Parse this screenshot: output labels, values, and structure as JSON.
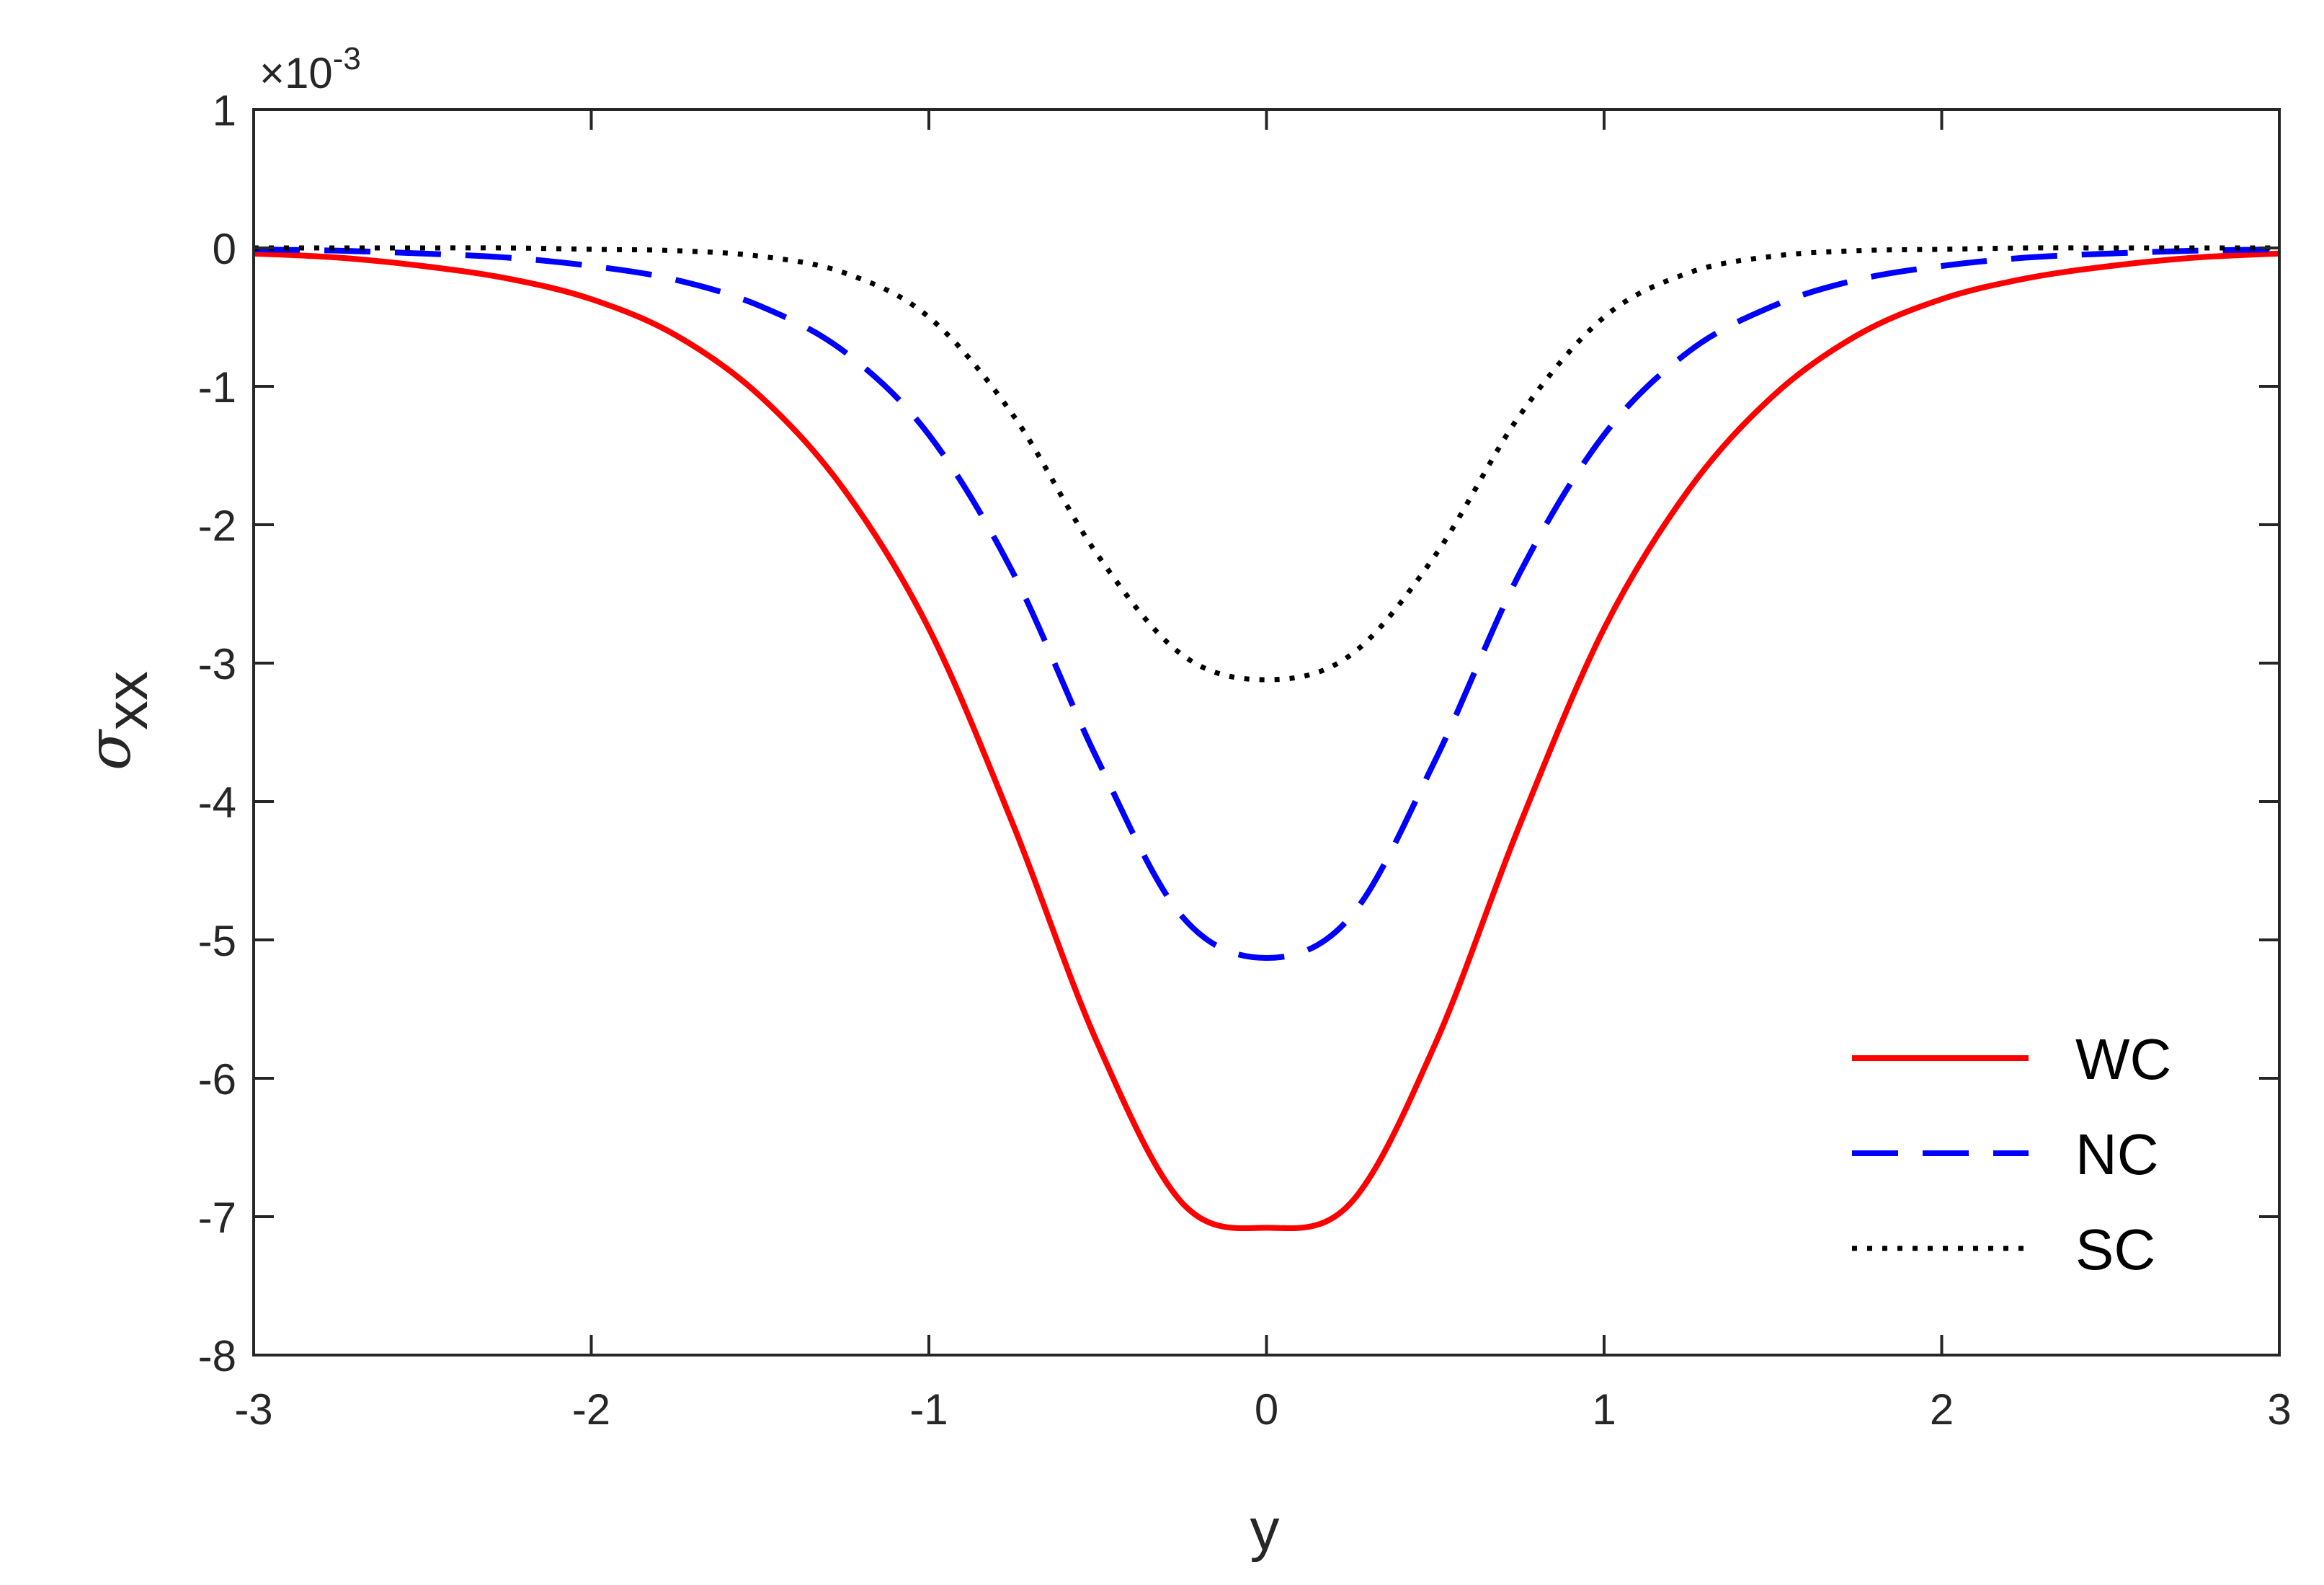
{
  "chart_data": {
    "type": "line",
    "xlabel": "y",
    "ylabel_symbol": "σ",
    "ylabel_subscript": "xx",
    "y_multiplier_base": "×10",
    "y_multiplier_exponent": "-3",
    "xlim": [
      -3,
      3
    ],
    "ylim": [
      -8,
      1
    ],
    "x_ticks": [
      -3,
      -2,
      -1,
      0,
      1,
      2,
      3
    ],
    "y_ticks": [
      1,
      0,
      -1,
      -2,
      -3,
      -4,
      -5,
      -6,
      -7,
      -8
    ],
    "x_tick_labels": [
      "-3",
      "-2",
      "-1",
      "0",
      "1",
      "2",
      "3"
    ],
    "y_tick_labels": [
      "1",
      "0",
      "-1",
      "-2",
      "-3",
      "-4",
      "-5",
      "-6",
      "-7",
      "-8"
    ],
    "grid": false,
    "legend_position": "bottom-right",
    "x": [
      -3.0,
      -2.75,
      -2.5,
      -2.25,
      -2.0,
      -1.75,
      -1.5,
      -1.25,
      -1.0,
      -0.75,
      -0.5,
      -0.25,
      0.0,
      0.25,
      0.5,
      0.75,
      1.0,
      1.25,
      1.5,
      1.75,
      2.0,
      2.25,
      2.5,
      2.75,
      3.0
    ],
    "series": [
      {
        "name": "WC",
        "color": "#ff0000",
        "style": "solid",
        "values": [
          -4e-05,
          -7e-05,
          -0.00013,
          -0.00022,
          -0.00037,
          -0.00063,
          -0.00107,
          -0.00175,
          -0.00275,
          -0.00417,
          -0.00575,
          -0.0069,
          -0.00708,
          -0.0069,
          -0.00575,
          -0.00417,
          -0.00275,
          -0.00175,
          -0.00107,
          -0.00063,
          -0.00037,
          -0.00022,
          -0.00013,
          -7e-05,
          -4e-05
        ]
      },
      {
        "name": "NC",
        "color": "#0000ff",
        "style": "dashed",
        "values": [
          -1e-05,
          -2e-05,
          -4e-05,
          -7e-05,
          -0.00013,
          -0.00023,
          -0.00042,
          -0.00075,
          -0.00135,
          -0.00235,
          -0.0037,
          -0.00483,
          -0.00513,
          -0.00483,
          -0.0037,
          -0.00235,
          -0.00135,
          -0.00075,
          -0.00042,
          -0.00023,
          -0.00013,
          -7e-05,
          -4e-05,
          -2e-05,
          -1e-05
        ]
      },
      {
        "name": "SC",
        "color": "#000000",
        "style": "dotted",
        "values": [
          0.0,
          0.0,
          0.0,
          0.0,
          -1e-05,
          -2e-05,
          -6e-05,
          -0.00018,
          -0.0005,
          -0.00121,
          -0.00222,
          -0.00294,
          -0.00312,
          -0.00294,
          -0.00222,
          -0.00121,
          -0.0005,
          -0.00018,
          -6e-05,
          -2e-05,
          -1e-05,
          0.0,
          0.0,
          0.0,
          0.0
        ]
      }
    ]
  }
}
